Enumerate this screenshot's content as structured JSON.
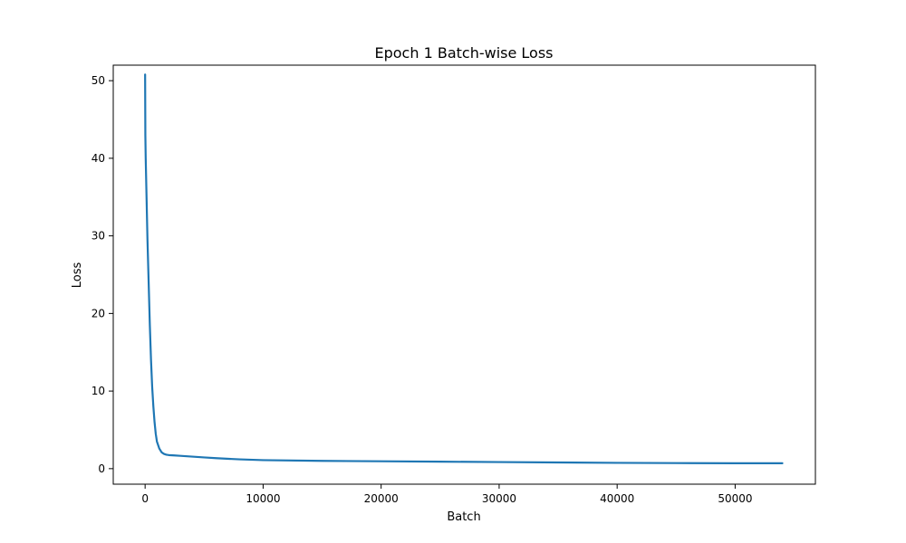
{
  "chart_data": {
    "type": "line",
    "title": "Epoch 1 Batch-wise Loss",
    "xlabel": "Batch",
    "ylabel": "Loss",
    "xlim": [
      -2700,
      56800
    ],
    "ylim": [
      -2.0,
      52.0
    ],
    "x_ticks": [
      0,
      10000,
      20000,
      30000,
      40000,
      50000
    ],
    "x_tick_labels": [
      "0",
      "10000",
      "20000",
      "30000",
      "40000",
      "50000"
    ],
    "y_ticks": [
      0,
      10,
      20,
      30,
      40,
      50
    ],
    "y_tick_labels": [
      "0",
      "10",
      "20",
      "30",
      "40",
      "50"
    ],
    "grid": false,
    "line_color": "#1f77b4",
    "series": [
      {
        "x": [
          0,
          20,
          50,
          100,
          150,
          200,
          300,
          400,
          500,
          600,
          700,
          800,
          900,
          1000,
          1200,
          1400,
          1600,
          1800,
          2000,
          2500,
          3000,
          4000,
          5000,
          6000,
          8000,
          10000,
          15000,
          20000,
          25000,
          30000,
          35000,
          40000,
          45000,
          50000,
          54000
        ],
        "y": [
          50.8,
          43.0,
          40.0,
          36.5,
          33.0,
          29.5,
          24.0,
          18.5,
          14.0,
          10.5,
          8.0,
          6.0,
          4.5,
          3.5,
          2.6,
          2.1,
          1.9,
          1.8,
          1.75,
          1.7,
          1.65,
          1.55,
          1.45,
          1.35,
          1.2,
          1.1,
          1.0,
          0.95,
          0.9,
          0.85,
          0.8,
          0.75,
          0.72,
          0.7,
          0.7
        ]
      }
    ]
  }
}
